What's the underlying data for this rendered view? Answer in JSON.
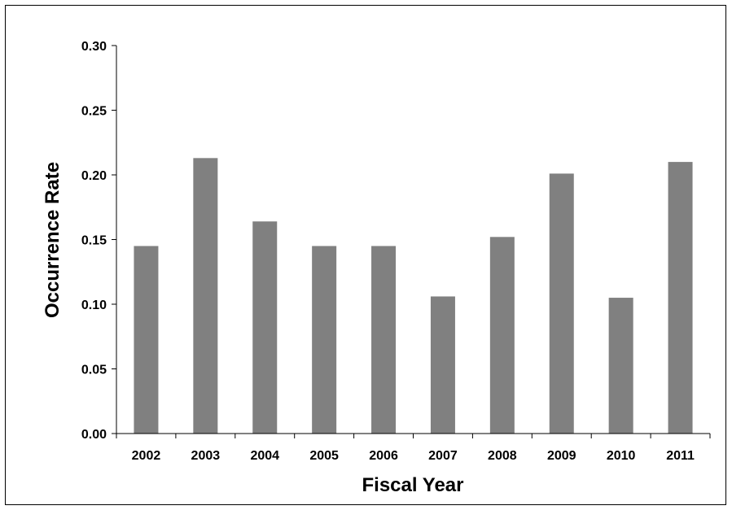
{
  "chart_data": {
    "type": "bar",
    "title": "",
    "xlabel": "Fiscal Year",
    "ylabel": "Occurrence Rate",
    "categories": [
      "2002",
      "2003",
      "2004",
      "2005",
      "2006",
      "2007",
      "2008",
      "2009",
      "2010",
      "2011"
    ],
    "values": [
      0.145,
      0.213,
      0.164,
      0.145,
      0.145,
      0.106,
      0.152,
      0.201,
      0.105,
      0.21
    ],
    "ylim": [
      0,
      0.3
    ],
    "yticks": [
      "0.00",
      "0.05",
      "0.10",
      "0.15",
      "0.20",
      "0.25",
      "0.30"
    ],
    "bar_color": "#808080",
    "grid": false,
    "legend": "none"
  }
}
